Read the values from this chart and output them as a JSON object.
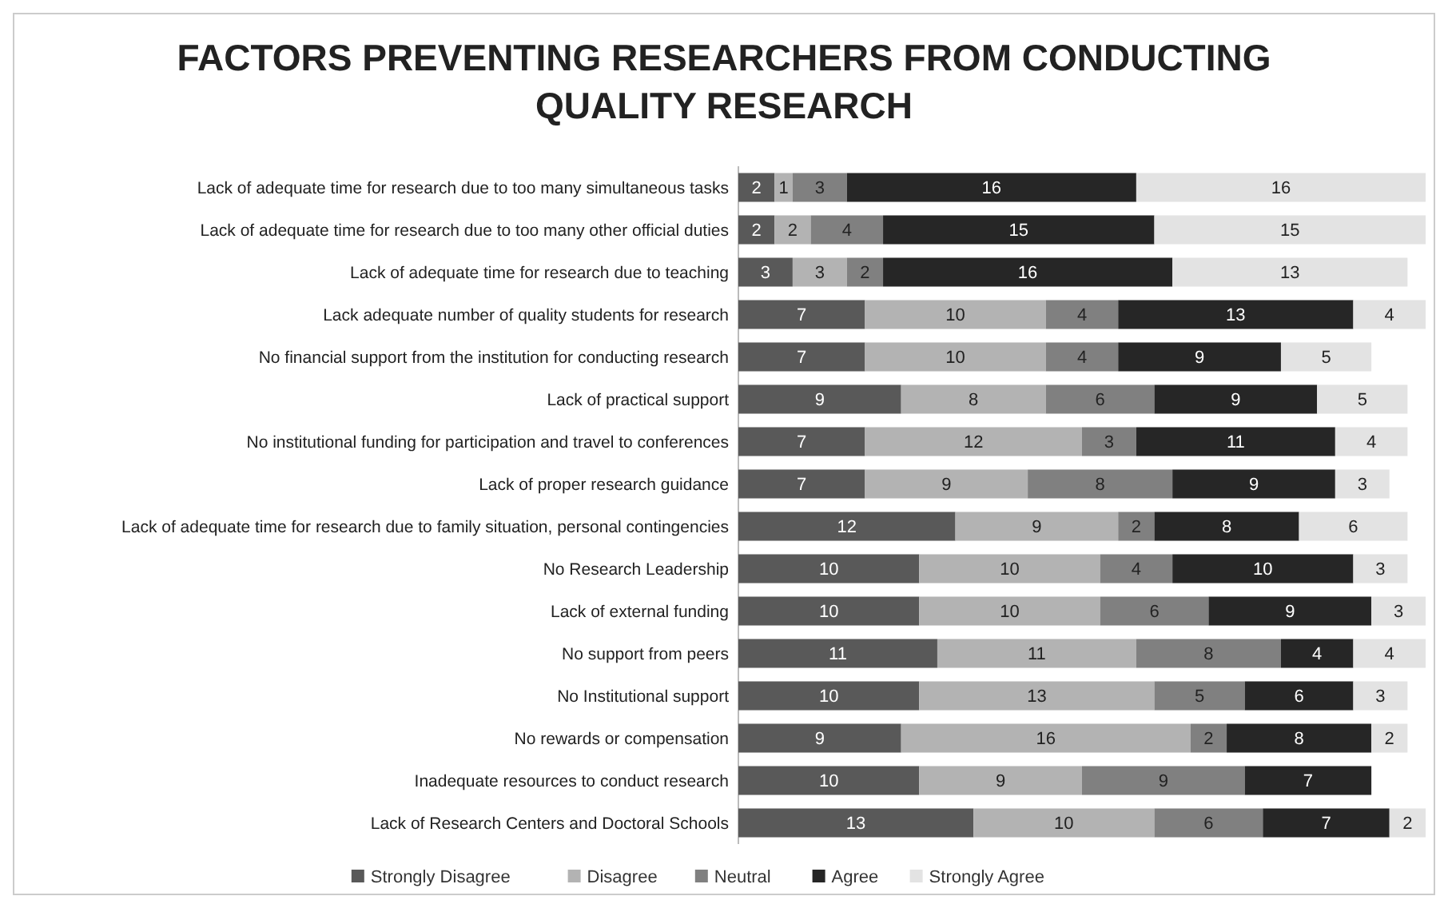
{
  "chart_data": {
    "type": "bar",
    "orientation": "horizontal",
    "stacked": true,
    "data_labels": true,
    "legend": "bottom",
    "title": "FACTORS PREVENTING RESEARCHERS FROM CONDUCTING QUALITY RESEARCH",
    "categories": [
      "Lack of adequate time for research due to too many simultaneous tasks",
      "Lack of adequate time for research due to too many other official duties",
      "Lack of adequate time for research due to teaching",
      "Lack adequate number of quality students for research",
      "No financial support from the institution for conducting research",
      "Lack of practical support",
      "No institutional funding for participation and travel to conferences",
      "Lack of proper research guidance",
      "Lack of adequate time for research due to family situation, personal contingencies",
      "No Research Leadership",
      "Lack of external funding",
      "No support from peers",
      "No Institutional support",
      "No rewards or compensation",
      "Inadequate resources to conduct research",
      "Lack of Research Centers and Doctoral Schools"
    ],
    "series": [
      {
        "name": "Strongly Disagree",
        "color": "#595959",
        "values": [
          2,
          2,
          3,
          7,
          7,
          9,
          7,
          7,
          12,
          10,
          10,
          11,
          10,
          9,
          10,
          13
        ]
      },
      {
        "name": "Disagree",
        "color": "#b3b3b3",
        "values": [
          1,
          2,
          3,
          10,
          10,
          8,
          12,
          9,
          9,
          10,
          10,
          11,
          13,
          16,
          9,
          10
        ]
      },
      {
        "name": "Neutral",
        "color": "#808080",
        "values": [
          3,
          4,
          2,
          4,
          4,
          6,
          3,
          8,
          2,
          4,
          6,
          8,
          5,
          2,
          9,
          6
        ]
      },
      {
        "name": "Agree",
        "color": "#262626",
        "values": [
          16,
          15,
          16,
          13,
          9,
          9,
          11,
          9,
          8,
          10,
          9,
          4,
          6,
          8,
          7,
          7
        ]
      },
      {
        "name": "Strongly Agree",
        "color": "#e3e3e3",
        "values": [
          16,
          15,
          13,
          4,
          5,
          5,
          4,
          3,
          6,
          3,
          3,
          4,
          3,
          2,
          null,
          2
        ]
      }
    ]
  }
}
